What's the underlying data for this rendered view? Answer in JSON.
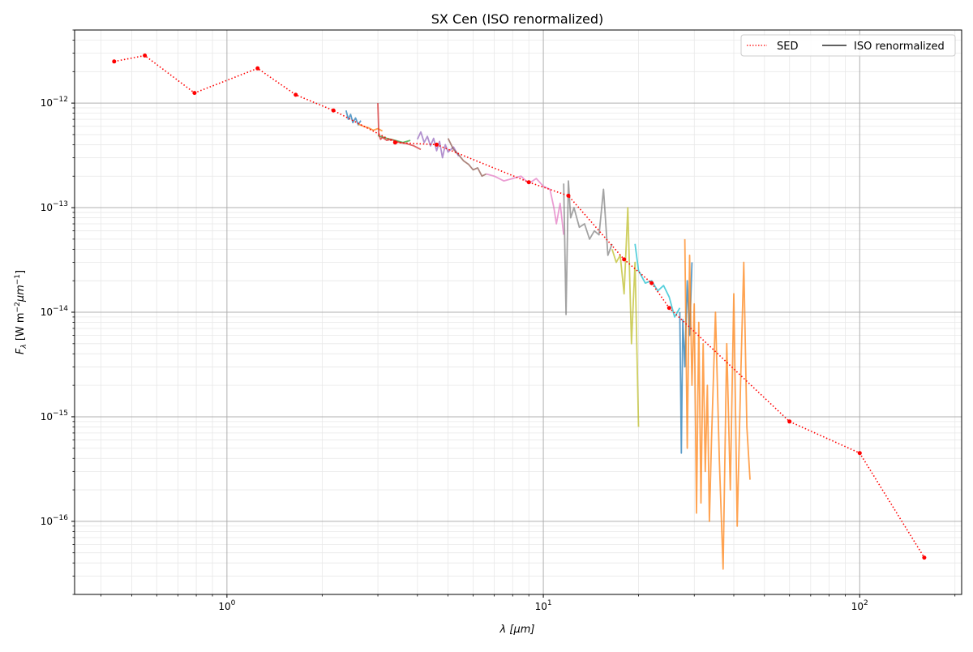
{
  "chart_data": {
    "type": "line",
    "title": "SX Cen (ISO renormalized)",
    "xlabel": "λ [μm]",
    "ylabel_base": "F",
    "ylabel_sub": "λ",
    "ylabel_rest": " [W m",
    "ylabel_sup1": "−2",
    "ylabel_mid": "μm",
    "ylabel_sup2": "−1",
    "ylabel_end": "]",
    "x_scale": "log",
    "y_scale": "log",
    "xlim": [
      0.33,
      210
    ],
    "ylim": [
      2e-17,
      5e-12
    ],
    "grid": true,
    "legend_placement": "top-right",
    "x_ticks": [
      {
        "value": 1,
        "base": "10",
        "exp": "0"
      },
      {
        "value": 10,
        "base": "10",
        "exp": "1"
      },
      {
        "value": 100,
        "base": "10",
        "exp": "2"
      }
    ],
    "y_ticks": [
      {
        "value": 1e-16,
        "base": "10",
        "exp": "−16"
      },
      {
        "value": 1e-15,
        "base": "10",
        "exp": "−15"
      },
      {
        "value": 1e-14,
        "base": "10",
        "exp": "−14"
      },
      {
        "value": 1e-13,
        "base": "10",
        "exp": "−13"
      },
      {
        "value": 1e-12,
        "base": "10",
        "exp": "−12"
      }
    ],
    "legend": [
      {
        "label": "SED",
        "style": "dotted",
        "color": "#ff0000"
      },
      {
        "label": "ISO renormalized",
        "style": "solid",
        "color": "#000000"
      }
    ],
    "sed": {
      "name": "SED",
      "color": "#ff0000",
      "x": [
        0.44,
        0.55,
        0.79,
        1.25,
        1.65,
        2.17,
        3.4,
        4.6,
        9.0,
        12.0,
        18.0,
        22.0,
        25.0,
        60.0,
        100.0,
        160.0
      ],
      "y": [
        2.5e-12,
        2.85e-12,
        1.25e-12,
        2.15e-12,
        1.2e-12,
        8.5e-13,
        4.2e-13,
        4e-13,
        1.75e-13,
        1.3e-13,
        3.2e-14,
        1.9e-14,
        1.1e-14,
        9e-16,
        4.5e-16,
        4.5e-17
      ]
    },
    "iso_segments": [
      {
        "color": "#1f77b4",
        "x": [
          2.38,
          2.42,
          2.46,
          2.5,
          2.55,
          2.6,
          2.65
        ],
        "y": [
          8.5e-13,
          7e-13,
          7.8e-13,
          6.5e-13,
          7.2e-13,
          6.2e-13,
          6.8e-13
        ]
      },
      {
        "color": "#ff7f0e",
        "x": [
          2.6,
          2.7,
          2.8,
          2.9,
          3.0,
          3.1
        ],
        "y": [
          6.3e-13,
          6e-13,
          5.8e-13,
          5.5e-13,
          5.7e-13,
          5.4e-13
        ]
      },
      {
        "color": "#2ca02c",
        "x": [
          3.0,
          3.2,
          3.4,
          3.6,
          3.8
        ],
        "y": [
          4.9e-13,
          4.6e-13,
          4.4e-13,
          4.2e-13,
          4.4e-13
        ]
      },
      {
        "color": "#d62728",
        "x": [
          3.0,
          3.02,
          3.06,
          3.1,
          3.2,
          3.3,
          3.5,
          3.7,
          3.9,
          4.1
        ],
        "y": [
          1e-12,
          5e-13,
          4.5e-13,
          4.7e-13,
          4.4e-13,
          4.5e-13,
          4.2e-13,
          4.1e-13,
          3.9e-13,
          3.6e-13
        ]
      },
      {
        "color": "#9467bd",
        "x": [
          4.0,
          4.1,
          4.2,
          4.3,
          4.4,
          4.5,
          4.6,
          4.7,
          4.8,
          4.9,
          5.0,
          5.2,
          5.4
        ],
        "y": [
          4.5e-13,
          5.3e-13,
          4.2e-13,
          4.8e-13,
          3.9e-13,
          4.6e-13,
          3.5e-13,
          4.3e-13,
          3e-13,
          4e-13,
          3.4e-13,
          3.8e-13,
          3.1e-13
        ]
      },
      {
        "color": "#8c564b",
        "x": [
          5.0,
          5.2,
          5.4,
          5.6,
          5.8,
          6.0,
          6.2,
          6.4,
          6.6
        ],
        "y": [
          4.6e-13,
          3.6e-13,
          3.2e-13,
          2.8e-13,
          2.6e-13,
          2.3e-13,
          2.4e-13,
          2e-13,
          2.1e-13
        ]
      },
      {
        "color": "#e377c2",
        "x": [
          6.6,
          7.0,
          7.5,
          8.0,
          8.5,
          9.0,
          9.5,
          10.0,
          10.5,
          10.8,
          11.0,
          11.3,
          11.6
        ],
        "y": [
          2.1e-13,
          2e-13,
          1.8e-13,
          1.9e-13,
          2e-13,
          1.7e-13,
          1.9e-13,
          1.6e-13,
          1.5e-13,
          1e-13,
          7e-14,
          1.1e-13,
          5.5e-14
        ]
      },
      {
        "color": "#7f7f7f",
        "x": [
          11.6,
          11.8,
          12.0,
          12.2,
          12.5,
          13.0,
          13.5,
          14.0,
          14.5,
          15.0,
          15.5,
          16.0,
          16.5
        ],
        "y": [
          1.7e-13,
          9.5e-15,
          1.8e-13,
          8e-14,
          1e-13,
          6.5e-14,
          7e-14,
          5e-14,
          6e-14,
          5.5e-14,
          1.5e-13,
          3.5e-14,
          4.5e-14
        ]
      },
      {
        "color": "#bcbd22",
        "x": [
          16.5,
          17.0,
          17.5,
          18.0,
          18.5,
          19.0,
          19.5,
          20.0
        ],
        "y": [
          4e-14,
          3e-14,
          3.5e-14,
          1.5e-14,
          1e-13,
          5e-15,
          3e-14,
          8e-16
        ]
      },
      {
        "color": "#17becf",
        "x": [
          19.5,
          20.0,
          21.0,
          22.0,
          23.0,
          24.0,
          25.0,
          26.0,
          27.0
        ],
        "y": [
          4.5e-14,
          2.5e-14,
          1.9e-14,
          2e-14,
          1.6e-14,
          1.8e-14,
          1.4e-14,
          9e-15,
          1.1e-14
        ]
      },
      {
        "color": "#1f77b4",
        "x": [
          27.0,
          27.3,
          27.6,
          28.0,
          28.5,
          29.0,
          29.5
        ],
        "y": [
          1e-14,
          4.5e-16,
          8.5e-15,
          3e-15,
          2e-14,
          6e-15,
          3e-14
        ]
      },
      {
        "color": "#ff7f0e",
        "x": [
          28.0,
          28.5,
          29.0,
          29.5,
          30.0,
          30.5,
          31.0,
          31.5,
          32.0,
          32.5,
          33.0,
          33.5,
          34.0,
          35.0,
          36.0,
          37.0,
          38.0,
          39.0,
          40.0,
          41.0,
          42.0,
          43.0,
          44.0,
          45.0
        ],
        "y": [
          5e-14,
          5e-16,
          3.5e-14,
          2e-15,
          1.2e-14,
          1.2e-16,
          8e-15,
          1.5e-16,
          5e-15,
          3e-16,
          2e-15,
          1e-16,
          6e-16,
          1e-14,
          4e-16,
          3.5e-17,
          5e-15,
          2e-16,
          1.5e-14,
          9e-17,
          2e-15,
          3e-14,
          8e-16,
          2.5e-16
        ]
      }
    ]
  }
}
